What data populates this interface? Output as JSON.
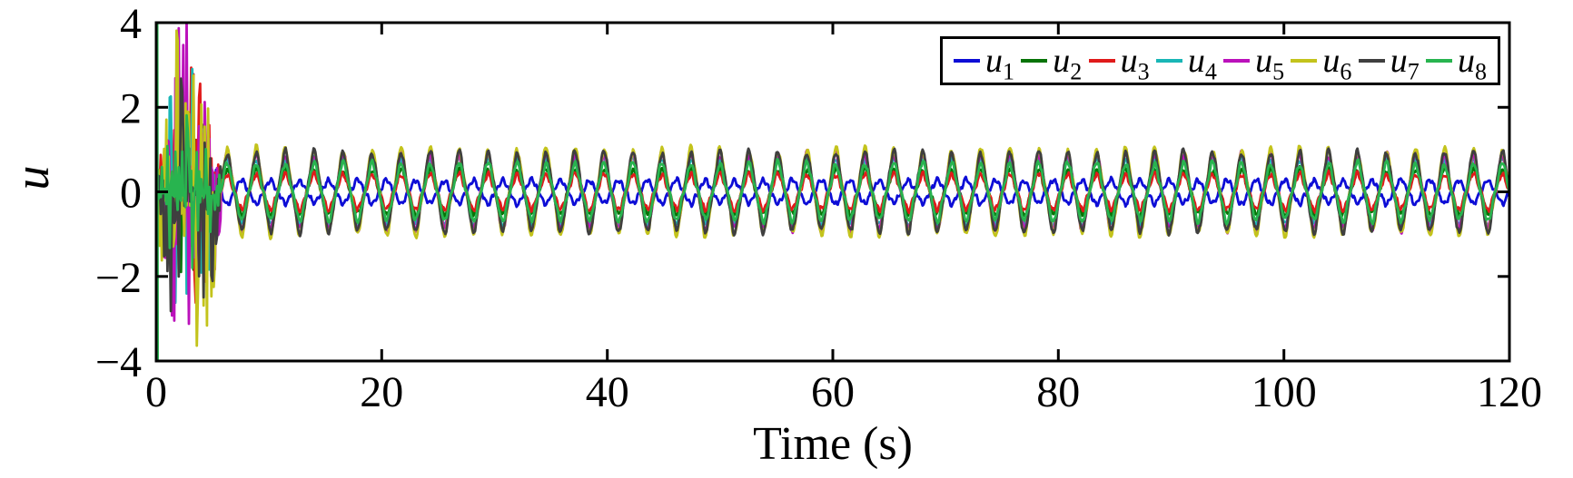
{
  "chart_data": {
    "type": "line",
    "title": "",
    "xlabel": "Time (s)",
    "ylabel": "u",
    "xlim": [
      0,
      120
    ],
    "ylim": [
      -4,
      4
    ],
    "xticks": [
      0,
      20,
      40,
      60,
      80,
      100,
      120
    ],
    "yticks": [
      -4,
      -2,
      0,
      2,
      4
    ],
    "grid": false,
    "axis_color": "#000000",
    "background_color": "#ffffff",
    "legend": {
      "position": "top-right-inside",
      "orientation": "horizontal",
      "border_color": "#000000",
      "background": "#ffffff"
    },
    "steady_state": {
      "period_s": 2.57,
      "onset_time_s": 6,
      "waveform": "near-sinusoidal, all series synchronized",
      "antiphase_series": [
        "u1"
      ]
    },
    "transient": {
      "start_s": 0,
      "end_s": 6,
      "peak_time_s": 3,
      "max_abs_value": 4,
      "description": "dense random high-amplitude burst clipped at plot limits, settling to periodic oscillation by ~6 s"
    },
    "series": [
      {
        "name": "u1",
        "label": "u",
        "subscript": "1",
        "color": "#0d0dd6",
        "steady_amplitude": 0.24,
        "steady_phase": "antiphase",
        "transient_peak": 1.1,
        "seed": 11
      },
      {
        "name": "u2",
        "label": "u",
        "subscript": "2",
        "color": "#077307",
        "steady_amplitude": 0.45,
        "steady_phase": "in-phase",
        "transient_peak": 2.4,
        "seed": 22
      },
      {
        "name": "u3",
        "label": "u",
        "subscript": "3",
        "color": "#e01a1a",
        "steady_amplitude": 0.36,
        "steady_phase": "in-phase",
        "transient_peak": 3.0,
        "seed": 33
      },
      {
        "name": "u4",
        "label": "u",
        "subscript": "4",
        "color": "#19b6b6",
        "steady_amplitude": 0.68,
        "steady_phase": "in-phase",
        "transient_peak": 3.2,
        "seed": 44
      },
      {
        "name": "u5",
        "label": "u",
        "subscript": "5",
        "color": "#bb11bb",
        "steady_amplitude": 0.76,
        "steady_phase": "in-phase",
        "transient_peak": 4.3,
        "seed": 55
      },
      {
        "name": "u6",
        "label": "u",
        "subscript": "6",
        "color": "#c3c31c",
        "steady_amplitude": 0.86,
        "steady_phase": "in-phase",
        "transient_peak": 4.4,
        "seed": 66
      },
      {
        "name": "u7",
        "label": "u",
        "subscript": "7",
        "color": "#3f3f3f",
        "steady_amplitude": 0.8,
        "steady_phase": "in-phase",
        "transient_peak": 4.0,
        "seed": 77
      },
      {
        "name": "u8",
        "label": "u",
        "subscript": "8",
        "color": "#28b44f",
        "steady_amplitude": 0.58,
        "steady_phase": "in-phase",
        "transient_peak": 1.9,
        "initial_spike": true,
        "seed": 88
      }
    ]
  }
}
